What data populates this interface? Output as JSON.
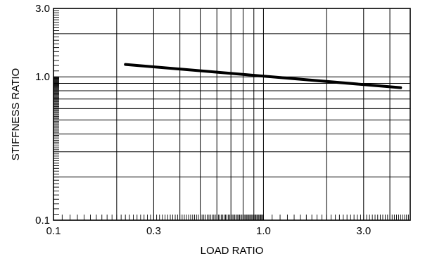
{
  "chart_data": {
    "type": "line",
    "xscale": "log",
    "yscale": "log",
    "xlim": [
      0.1,
      5.0
    ],
    "ylim": [
      0.1,
      3.0
    ],
    "xlabel": "LOAD RATIO",
    "ylabel": "STIFFNESS RATIO",
    "x_ticks": [
      {
        "value": 0.1,
        "label": "0.1"
      },
      {
        "value": 0.3,
        "label": "0.3"
      },
      {
        "value": 1.0,
        "label": "1.0"
      },
      {
        "value": 3.0,
        "label": "3.0"
      }
    ],
    "y_ticks": [
      {
        "value": 0.1,
        "label": "0.1"
      },
      {
        "value": 1.0,
        "label": "1.0"
      },
      {
        "value": 3.0,
        "label": "3.0"
      }
    ],
    "grid": true,
    "series": [
      {
        "x": [
          0.22,
          4.5
        ],
        "y": [
          1.22,
          0.84
        ]
      }
    ]
  }
}
